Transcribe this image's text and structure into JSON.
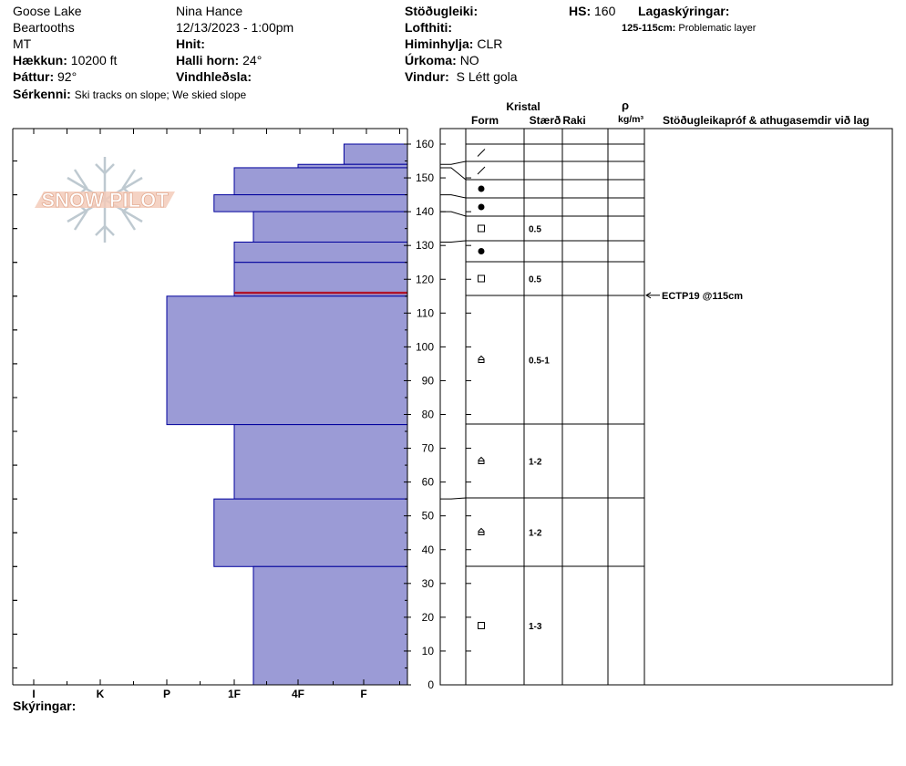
{
  "header": {
    "location": "Goose Lake",
    "range": "Beartooths",
    "state": "MT",
    "elevation_label": "Hækkun:",
    "elevation": "10200 ft",
    "aspect_label": "Þáttur:",
    "aspect": "92°",
    "features_label": "Sérkenni:",
    "features": "Ski tracks on slope; We skied slope",
    "observer": "Nina Hance",
    "datetime": "12/13/2023 - 1:00pm",
    "coords_label": "Hnit:",
    "coords": "",
    "slope_label": "Halli horn:",
    "slope": "24°",
    "wind_loading_label": "Vindhleðsla:",
    "wind_loading": "",
    "stability_label": "Stöðugleiki:",
    "stability": "",
    "air_temp_label": "Lofthiti:",
    "air_temp": "",
    "sky_label": "Himinhylja:",
    "sky": "CLR",
    "precip_label": "Úrkoma:",
    "precip": "NO",
    "wind_label": "Vindur:",
    "wind": "S Létt gola",
    "hs_label": "HS:",
    "hs": "160",
    "layer_notes_label": "Lagaskýringar:",
    "layer_note_range": "125-115cm:",
    "layer_note_text": "Problematic layer"
  },
  "logo": {
    "text": "SNOW PILOT"
  },
  "footer": {
    "legend_label": "Skýringar:"
  },
  "columns": {
    "crystal": "Kristal",
    "form": "Form",
    "size": "Stærð",
    "moisture": "Raki",
    "rho": "ρ",
    "density_unit": "kg/m³",
    "tests": "Stöðugleikapróf & athugasemdir við lag"
  },
  "colors": {
    "layer_fill": "#9b9bd6",
    "layer_stroke": "#00009c",
    "problem_line": "#b0142a"
  },
  "chart_data": {
    "type": "snow_profile",
    "y_axis": {
      "label": "",
      "ylim": [
        0,
        160
      ],
      "ticks": [
        0,
        10,
        20,
        30,
        40,
        50,
        60,
        70,
        80,
        90,
        100,
        110,
        120,
        130,
        140,
        150,
        160
      ]
    },
    "hardness_axis": {
      "ticks": [
        "I",
        "K",
        "P",
        "1F",
        "4F",
        "F"
      ]
    },
    "layers": [
      {
        "top": 160,
        "bottom": 154,
        "hardness": "F",
        "form": "/",
        "size": ""
      },
      {
        "top": 154,
        "bottom": 153,
        "hardness": "4F",
        "form": "/",
        "size": ""
      },
      {
        "top": 153,
        "bottom": 145,
        "hardness": "1F",
        "form": "●",
        "size": ""
      },
      {
        "top": 145,
        "bottom": 140,
        "hardness": "P+",
        "form": "●",
        "size": ""
      },
      {
        "top": 140,
        "bottom": 131,
        "hardness": "1F-",
        "form": "□",
        "size": "0.5"
      },
      {
        "top": 131,
        "bottom": 125,
        "hardness": "1F",
        "form": "●",
        "size": ""
      },
      {
        "top": 125,
        "bottom": 115,
        "hardness": "1F",
        "form": "□",
        "size": "0.5"
      },
      {
        "top": 115,
        "bottom": 77,
        "hardness": "P",
        "form": "⌂",
        "size": "0.5-1"
      },
      {
        "top": 77,
        "bottom": 55,
        "hardness": "1F",
        "form": "⌂",
        "size": "1-2"
      },
      {
        "top": 55,
        "bottom": 35,
        "hardness": "P+",
        "form": "⌂",
        "size": "1-2"
      },
      {
        "top": 35,
        "bottom": 0,
        "hardness": "1F-",
        "form": "□",
        "size": "1-3"
      }
    ],
    "hardness_values": [
      4.7,
      4.0,
      3.0,
      2.7,
      3.3,
      3.0,
      3.0,
      2.0,
      3.0,
      2.7,
      3.3
    ],
    "problem_layer_cm": 116,
    "tests": [
      {
        "depth_cm": 115,
        "label": "ECTP19 @115cm"
      }
    ]
  }
}
